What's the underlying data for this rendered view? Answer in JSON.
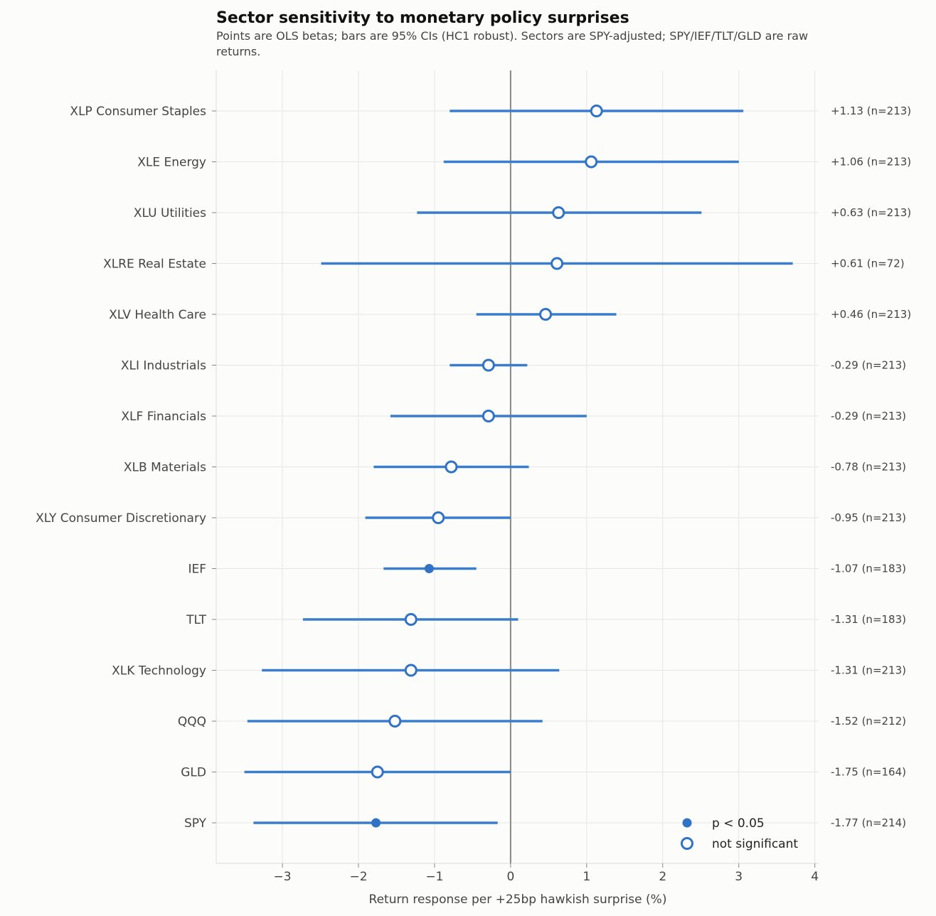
{
  "chart_data": {
    "type": "scatter",
    "title": "Sector sensitivity to monetary policy surprises",
    "subtitle": "Points are OLS betas; bars are 95% CIs (HC1 robust). Sectors are SPY-adjusted; SPY/IEF/TLT/GLD are raw returns.",
    "subtitle_lines": [
      "Points are OLS betas; bars are 95% CIs (HC1 robust). Sectors are SPY-adjusted; SPY/IEF/TLT/GLD are raw",
      "returns."
    ],
    "xlabel": "Return response per +25bp hawkish surprise (%)",
    "ylabel": "",
    "xlim": [
      -3.87,
      4.05
    ],
    "xticks": [
      -3,
      -2,
      -1,
      0,
      1,
      2,
      3,
      4
    ],
    "xtick_labels": [
      "−3",
      "−2",
      "−1",
      "0",
      "1",
      "2",
      "3",
      "4"
    ],
    "grid": true,
    "zero_line": 0,
    "series_color": "#3a7dcc",
    "point_color": "#2f72c6",
    "legend": {
      "position": "bottom-right",
      "entries": [
        {
          "label": "p < 0.05",
          "marker": "filled"
        },
        {
          "label": "not significant",
          "marker": "open"
        }
      ]
    },
    "rows": [
      {
        "label": "XLP  Consumer Staples",
        "beta": 1.13,
        "ci_low": -0.8,
        "ci_high": 3.06,
        "significant": false,
        "annotation": "+1.13  (n=213)"
      },
      {
        "label": "XLE  Energy",
        "beta": 1.06,
        "ci_low": -0.88,
        "ci_high": 3.0,
        "significant": false,
        "annotation": "+1.06  (n=213)"
      },
      {
        "label": "XLU  Utilities",
        "beta": 0.63,
        "ci_low": -1.23,
        "ci_high": 2.51,
        "significant": false,
        "annotation": "+0.63  (n=213)"
      },
      {
        "label": "XLRE  Real Estate",
        "beta": 0.61,
        "ci_low": -2.49,
        "ci_high": 3.71,
        "significant": false,
        "annotation": "+0.61  (n=72)"
      },
      {
        "label": "XLV  Health Care",
        "beta": 0.46,
        "ci_low": -0.45,
        "ci_high": 1.39,
        "significant": false,
        "annotation": "+0.46  (n=213)"
      },
      {
        "label": "XLI  Industrials",
        "beta": -0.29,
        "ci_low": -0.8,
        "ci_high": 0.22,
        "significant": false,
        "annotation": "-0.29  (n=213)"
      },
      {
        "label": "XLF  Financials",
        "beta": -0.29,
        "ci_low": -1.58,
        "ci_high": 1.0,
        "significant": false,
        "annotation": "-0.29  (n=213)"
      },
      {
        "label": "XLB  Materials",
        "beta": -0.78,
        "ci_low": -1.8,
        "ci_high": 0.24,
        "significant": false,
        "annotation": "-0.78  (n=213)"
      },
      {
        "label": "XLY  Consumer Discretionary",
        "beta": -0.95,
        "ci_low": -1.91,
        "ci_high": 0.0,
        "significant": false,
        "annotation": "-0.95  (n=213)"
      },
      {
        "label": "IEF",
        "beta": -1.07,
        "ci_low": -1.67,
        "ci_high": -0.45,
        "significant": true,
        "annotation": "-1.07  (n=183)"
      },
      {
        "label": "TLT",
        "beta": -1.31,
        "ci_low": -2.73,
        "ci_high": 0.1,
        "significant": false,
        "annotation": "-1.31  (n=183)"
      },
      {
        "label": "XLK  Technology",
        "beta": -1.31,
        "ci_low": -3.27,
        "ci_high": 0.64,
        "significant": false,
        "annotation": "-1.31  (n=213)"
      },
      {
        "label": "QQQ",
        "beta": -1.52,
        "ci_low": -3.46,
        "ci_high": 0.42,
        "significant": false,
        "annotation": "-1.52  (n=212)"
      },
      {
        "label": "GLD",
        "beta": -1.75,
        "ci_low": -3.5,
        "ci_high": 0.0,
        "significant": false,
        "annotation": "-1.75  (n=164)"
      },
      {
        "label": "SPY",
        "beta": -1.77,
        "ci_low": -3.38,
        "ci_high": -0.17,
        "significant": true,
        "annotation": "-1.77  (n=214)"
      }
    ]
  }
}
